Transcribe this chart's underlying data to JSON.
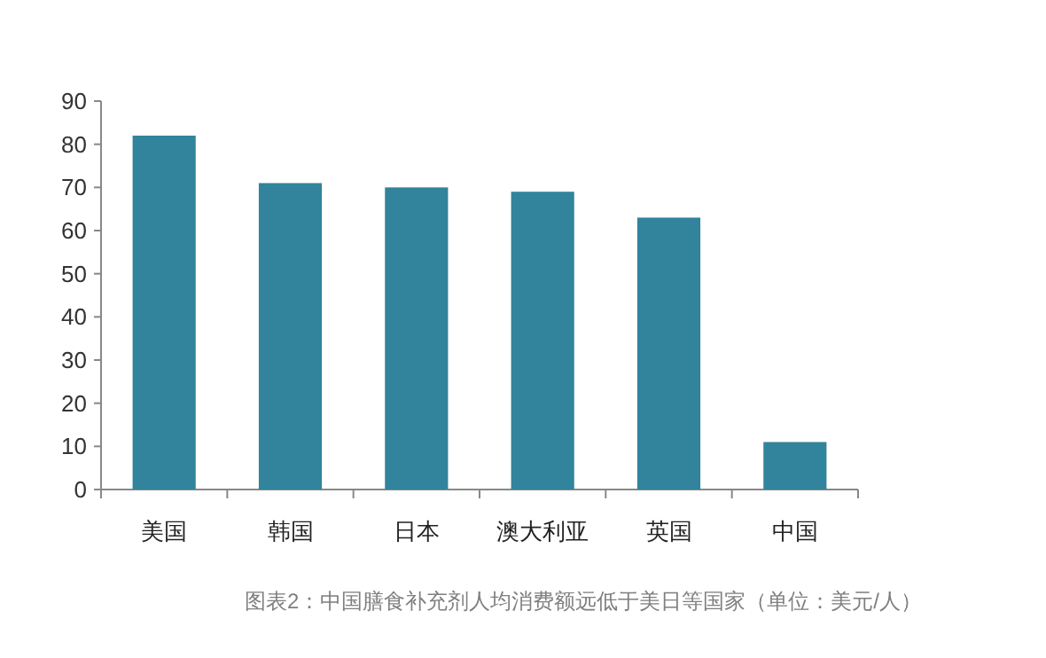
{
  "chart_data": {
    "type": "bar",
    "categories": [
      "美国",
      "韩国",
      "日本",
      "澳大利亚",
      "英国",
      "中国"
    ],
    "values": [
      82,
      71,
      70,
      69,
      63,
      11
    ],
    "color": "#31849b",
    "ylim": [
      0,
      90
    ],
    "yticks": [
      0,
      10,
      20,
      30,
      40,
      50,
      60,
      70,
      80,
      90
    ],
    "grid": false,
    "legend": false,
    "annotations": [
      "图表2：中国膳食补充剂人均消费额远低于美日等国家（单位：美元/人）"
    ]
  }
}
